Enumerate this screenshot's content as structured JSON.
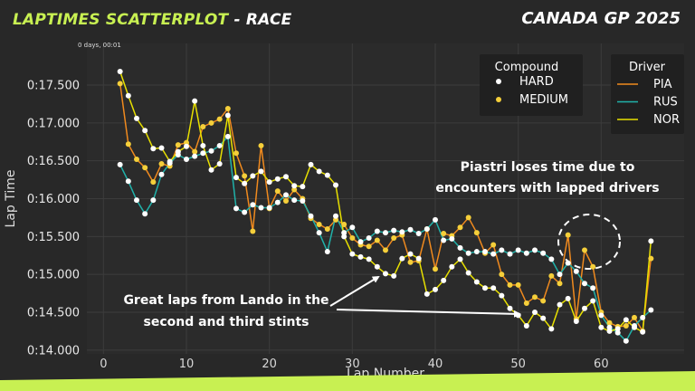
{
  "header": {
    "title_highlight": "LAPTIMES SCATTERPLOT",
    "title_rest": " - RACE",
    "event": "CANADA GP 2025"
  },
  "colors": {
    "accent": "#c8f052",
    "background": "#282828",
    "PIA": "#f08a1e",
    "RUS": "#20b2aa",
    "NOR": "#e8e000",
    "HARD": "#ffffff",
    "MEDIUM": "#f5cf3a"
  },
  "chart_data": {
    "type": "line",
    "xlabel": "Lap Number",
    "ylabel": "Lap Time",
    "offset_label": "0 days, 00:01",
    "xlim": [
      -2,
      70
    ],
    "ylim": [
      73.95,
      78.05
    ],
    "xticks": [
      0,
      10,
      20,
      30,
      40,
      50,
      60
    ],
    "yticks": [
      {
        "v": 74.0,
        "label": "0:14.000"
      },
      {
        "v": 74.5,
        "label": "0:14.500"
      },
      {
        "v": 75.0,
        "label": "0:15.000"
      },
      {
        "v": 75.5,
        "label": "0:15.500"
      },
      {
        "v": 76.0,
        "label": "0:16.000"
      },
      {
        "v": 76.5,
        "label": "0:16.500"
      },
      {
        "v": 77.0,
        "label": "0:17.000"
      },
      {
        "v": 77.5,
        "label": "0:17.500"
      }
    ],
    "grid": true,
    "legend_compound": {
      "title": "Compound",
      "entries": [
        "HARD",
        "MEDIUM"
      ]
    },
    "legend_driver": {
      "title": "Driver",
      "entries": [
        "PIA",
        "RUS",
        "NOR"
      ]
    },
    "annotations": [
      {
        "text": "Piastri loses time due to encounters with lapped drivers"
      },
      {
        "text": "Great laps from Lando in the second and third stints"
      }
    ],
    "series": [
      {
        "name": "PIA",
        "compound": "MEDIUM",
        "x": [
          2,
          3,
          4,
          5,
          6,
          7,
          8,
          9,
          10,
          11,
          12,
          13,
          14,
          15,
          16,
          17,
          18,
          19,
          20,
          21,
          22,
          23,
          24,
          25,
          26,
          27,
          28,
          29,
          30,
          31,
          32,
          33,
          34,
          35,
          36,
          37,
          38,
          39,
          40,
          41,
          42,
          43,
          44,
          45,
          46,
          47,
          48,
          49,
          50,
          51,
          52,
          53,
          54,
          55,
          56,
          57,
          58,
          59,
          60,
          61,
          62,
          63,
          64,
          65,
          66
        ],
        "y": [
          77.52,
          76.72,
          76.52,
          76.41,
          76.22,
          76.46,
          76.43,
          76.71,
          76.74,
          76.62,
          76.95,
          77.0,
          77.05,
          77.19,
          76.6,
          76.3,
          75.57,
          76.7,
          75.87,
          76.1,
          75.97,
          76.12,
          76.0,
          75.74,
          75.66,
          75.6,
          75.72,
          75.66,
          75.48,
          75.39,
          75.37,
          75.45,
          75.32,
          75.48,
          75.52,
          75.16,
          75.18,
          75.6,
          75.07,
          75.54,
          75.51,
          75.62,
          75.75,
          75.55,
          75.28,
          75.39,
          75.0,
          74.86,
          74.86,
          74.62,
          74.7,
          74.65,
          74.98,
          74.88,
          75.52,
          74.41,
          75.32,
          75.1,
          74.5,
          74.36,
          74.31,
          74.32,
          74.43,
          74.25,
          75.21
        ]
      },
      {
        "name": "RUS",
        "compound": "HARD",
        "x": [
          2,
          3,
          4,
          5,
          6,
          7,
          8,
          9,
          10,
          11,
          12,
          13,
          14,
          15,
          16,
          17,
          18,
          19,
          20,
          21,
          22,
          23,
          24,
          25,
          26,
          27,
          28,
          29,
          30,
          31,
          32,
          33,
          34,
          35,
          36,
          37,
          38,
          39,
          40,
          41,
          42,
          43,
          44,
          45,
          46,
          47,
          48,
          49,
          50,
          51,
          52,
          53,
          54,
          55,
          56,
          57,
          58,
          59,
          60,
          61,
          62,
          63,
          64,
          65,
          66
        ],
        "y": [
          76.45,
          76.23,
          75.98,
          75.8,
          75.98,
          76.32,
          76.47,
          76.58,
          76.52,
          76.56,
          76.6,
          76.63,
          76.7,
          76.82,
          75.87,
          75.82,
          75.92,
          75.88,
          75.88,
          75.95,
          76.05,
          75.98,
          75.97,
          75.77,
          75.55,
          75.3,
          75.77,
          75.55,
          75.62,
          75.43,
          75.48,
          75.57,
          75.55,
          75.58,
          75.56,
          75.59,
          75.54,
          75.6,
          75.72,
          75.45,
          75.47,
          75.35,
          75.28,
          75.3,
          75.3,
          75.27,
          75.32,
          75.27,
          75.32,
          75.28,
          75.32,
          75.28,
          75.2,
          75.0,
          75.15,
          75.04,
          74.88,
          74.82,
          74.46,
          74.3,
          74.23,
          74.12,
          74.32,
          74.43,
          74.53
        ]
      },
      {
        "name": "NOR",
        "compound": "HARD",
        "x": [
          2,
          3,
          4,
          5,
          6,
          7,
          8,
          9,
          10,
          11,
          12,
          13,
          14,
          15,
          16,
          17,
          18,
          19,
          20,
          21,
          22,
          23,
          24,
          25,
          26,
          27,
          28,
          29,
          30,
          31,
          32,
          33,
          34,
          35,
          36,
          37,
          38,
          39,
          40,
          41,
          42,
          43,
          44,
          45,
          46,
          47,
          48,
          49,
          50,
          51,
          52,
          53,
          54,
          55,
          56,
          57,
          58,
          59,
          60,
          61,
          62,
          63,
          64,
          65,
          66
        ],
        "y": [
          77.68,
          77.36,
          77.06,
          76.9,
          76.66,
          76.67,
          76.49,
          76.62,
          76.69,
          77.29,
          76.7,
          76.38,
          76.46,
          77.1,
          76.28,
          76.2,
          76.3,
          76.36,
          76.22,
          76.26,
          76.29,
          76.17,
          76.16,
          76.45,
          76.36,
          76.31,
          76.18,
          75.5,
          75.27,
          75.23,
          75.2,
          75.1,
          75.01,
          74.98,
          75.21,
          75.27,
          75.21,
          74.74,
          74.8,
          74.92,
          75.1,
          75.2,
          75.02,
          74.9,
          74.82,
          74.82,
          74.72,
          74.55,
          74.46,
          74.32,
          74.5,
          74.42,
          74.28,
          74.6,
          74.68,
          74.38,
          74.55,
          74.65,
          74.3,
          74.25,
          74.28,
          74.4,
          74.3,
          74.24,
          75.44
        ]
      }
    ]
  }
}
